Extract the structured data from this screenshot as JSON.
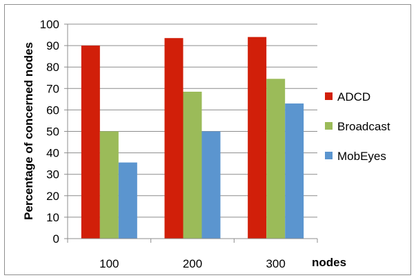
{
  "chart_data": {
    "type": "bar",
    "title": "",
    "xlabel": "nodes",
    "ylabel": "Percentage of concerned nodes",
    "categories": [
      "100",
      "200",
      "300"
    ],
    "series": [
      {
        "name": "ADCD",
        "values": [
          90,
          93.5,
          94
        ],
        "color": "#d11f09"
      },
      {
        "name": "Broadcast",
        "values": [
          50,
          68.5,
          74.5
        ],
        "color": "#9bbb59"
      },
      {
        "name": "MobEyes",
        "values": [
          35.5,
          50,
          63
        ],
        "color": "#5b95cf"
      }
    ],
    "ylim": [
      0,
      100
    ],
    "ytick_step": 10,
    "grid": true,
    "legend_position": "right"
  }
}
